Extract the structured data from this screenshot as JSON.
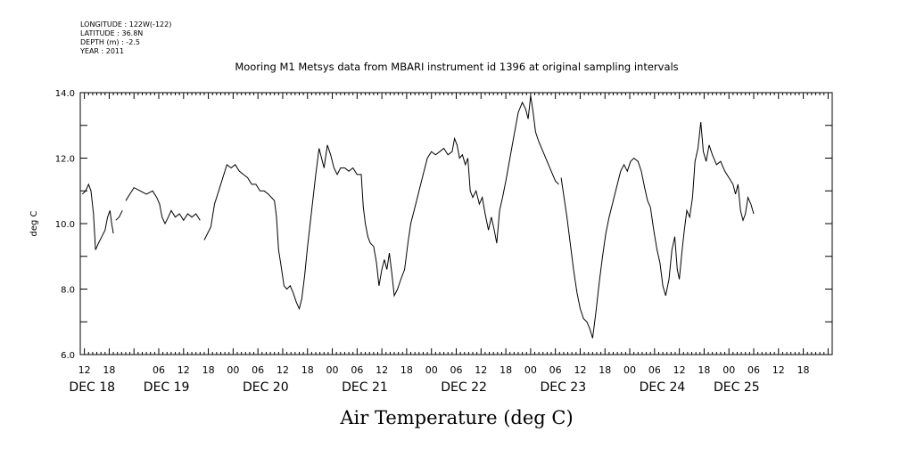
{
  "header": {
    "longitude": "LONGITUDE : 122W(-122)",
    "latitude": "LATITUDE : 36.8N",
    "depth": "DEPTH (m) : -2.5",
    "year": "YEAR : 2011"
  },
  "chart_data": {
    "type": "line",
    "title": "Mooring M1 Metsys data from MBARI instrument id 1396 at original sampling intervals",
    "ylabel": "deg C",
    "bottom_label": "Air Temperature (deg C)",
    "ylim": [
      6.0,
      14.0
    ],
    "yticks": [
      "6.0",
      "8.0",
      "10.0",
      "12.0",
      "14.0"
    ],
    "xlim_hours": [
      -1,
      181
    ],
    "xticks": [
      {
        "hour": 0,
        "label": "12"
      },
      {
        "hour": 6,
        "label": "18"
      },
      {
        "hour": 18,
        "label": "06"
      },
      {
        "hour": 24,
        "label": "12"
      },
      {
        "hour": 30,
        "label": "18"
      },
      {
        "hour": 36,
        "label": "00"
      },
      {
        "hour": 42,
        "label": "06"
      },
      {
        "hour": 48,
        "label": "12"
      },
      {
        "hour": 54,
        "label": "18"
      },
      {
        "hour": 60,
        "label": "00"
      },
      {
        "hour": 66,
        "label": "06"
      },
      {
        "hour": 72,
        "label": "12"
      },
      {
        "hour": 78,
        "label": "18"
      },
      {
        "hour": 84,
        "label": "00"
      },
      {
        "hour": 90,
        "label": "06"
      },
      {
        "hour": 96,
        "label": "12"
      },
      {
        "hour": 102,
        "label": "18"
      },
      {
        "hour": 108,
        "label": "00"
      },
      {
        "hour": 114,
        "label": "06"
      },
      {
        "hour": 120,
        "label": "12"
      },
      {
        "hour": 126,
        "label": "18"
      },
      {
        "hour": 132,
        "label": "00"
      },
      {
        "hour": 138,
        "label": "06"
      },
      {
        "hour": 144,
        "label": "12"
      },
      {
        "hour": 150,
        "label": "18"
      },
      {
        "hour": 156,
        "label": "00"
      },
      {
        "hour": 162,
        "label": "06"
      },
      {
        "hour": 168,
        "label": "12"
      },
      {
        "hour": 174,
        "label": "18"
      }
    ],
    "day_labels": [
      {
        "hour": 1,
        "label": "DEC 18"
      },
      {
        "hour": 19,
        "label": "DEC 19"
      },
      {
        "hour": 43,
        "label": "DEC 20"
      },
      {
        "hour": 67,
        "label": "DEC 21"
      },
      {
        "hour": 91,
        "label": "DEC 22"
      },
      {
        "hour": 115,
        "label": "DEC 23"
      },
      {
        "hour": 139,
        "label": "DEC 24"
      },
      {
        "hour": 157,
        "label": "DEC 25"
      }
    ],
    "segments": [
      [
        [
          -0.5,
          10.9
        ],
        [
          0.3,
          11.0
        ],
        [
          1.0,
          11.2
        ],
        [
          1.6,
          11.0
        ],
        [
          2.2,
          10.3
        ],
        [
          2.7,
          9.2
        ],
        [
          3.4,
          9.4
        ],
        [
          4.2,
          9.6
        ],
        [
          5.0,
          9.8
        ],
        [
          5.6,
          10.2
        ],
        [
          6.2,
          10.4
        ],
        [
          6.6,
          10.0
        ],
        [
          7.0,
          9.7
        ]
      ],
      [
        [
          7.6,
          10.1
        ],
        [
          8.4,
          10.2
        ],
        [
          9.2,
          10.4
        ]
      ],
      [
        [
          10.0,
          10.7
        ],
        [
          11.0,
          10.9
        ],
        [
          12.0,
          11.1
        ],
        [
          13.5,
          11.0
        ],
        [
          15.0,
          10.9
        ],
        [
          16.5,
          11.0
        ],
        [
          17.5,
          10.8
        ],
        [
          18.2,
          10.6
        ],
        [
          18.8,
          10.2
        ],
        [
          19.5,
          10.0
        ],
        [
          20.3,
          10.2
        ],
        [
          21.0,
          10.4
        ],
        [
          22.0,
          10.2
        ],
        [
          23.0,
          10.3
        ],
        [
          24.0,
          10.1
        ],
        [
          25.0,
          10.3
        ],
        [
          26.0,
          10.2
        ],
        [
          27.0,
          10.3
        ],
        [
          28.0,
          10.1
        ]
      ],
      [
        [
          29.0,
          9.5
        ],
        [
          29.8,
          9.7
        ],
        [
          30.6,
          9.9
        ],
        [
          31.5,
          10.6
        ],
        [
          32.5,
          11.0
        ],
        [
          33.5,
          11.4
        ],
        [
          34.5,
          11.8
        ],
        [
          35.5,
          11.7
        ],
        [
          36.5,
          11.8
        ],
        [
          37.5,
          11.6
        ],
        [
          38.5,
          11.5
        ],
        [
          39.5,
          11.4
        ],
        [
          40.5,
          11.2
        ],
        [
          41.5,
          11.2
        ],
        [
          42.5,
          11.0
        ],
        [
          43.5,
          11.0
        ],
        [
          44.5,
          10.9
        ],
        [
          46.0,
          10.7
        ],
        [
          46.5,
          10.2
        ],
        [
          47.0,
          9.2
        ],
        [
          47.5,
          8.8
        ],
        [
          48.3,
          8.1
        ],
        [
          49.0,
          8.0
        ],
        [
          49.8,
          8.1
        ],
        [
          50.5,
          7.9
        ],
        [
          51.3,
          7.6
        ],
        [
          52.0,
          7.4
        ],
        [
          52.6,
          7.7
        ],
        [
          53.3,
          8.4
        ],
        [
          54.0,
          9.3
        ],
        [
          55.0,
          10.4
        ],
        [
          56.0,
          11.5
        ],
        [
          56.8,
          12.3
        ],
        [
          57.4,
          12.0
        ],
        [
          58.0,
          11.7
        ],
        [
          58.8,
          12.4
        ],
        [
          59.6,
          12.1
        ],
        [
          60.4,
          11.7
        ],
        [
          61.2,
          11.5
        ],
        [
          62.0,
          11.7
        ],
        [
          63.0,
          11.7
        ],
        [
          64.0,
          11.6
        ],
        [
          65.0,
          11.7
        ],
        [
          66.0,
          11.5
        ],
        [
          67.0,
          11.5
        ],
        [
          67.5,
          10.5
        ],
        [
          68.0,
          10.0
        ],
        [
          68.6,
          9.6
        ],
        [
          69.2,
          9.4
        ],
        [
          70.0,
          9.3
        ],
        [
          70.7,
          8.8
        ],
        [
          71.3,
          8.1
        ],
        [
          72.0,
          8.6
        ],
        [
          72.6,
          8.9
        ],
        [
          73.2,
          8.6
        ],
        [
          73.8,
          9.1
        ],
        [
          74.4,
          8.5
        ],
        [
          75.0,
          7.8
        ],
        [
          75.8,
          8.0
        ],
        [
          76.6,
          8.3
        ],
        [
          77.5,
          8.6
        ],
        [
          78.3,
          9.4
        ],
        [
          79.0,
          10.0
        ],
        [
          80.0,
          10.5
        ],
        [
          81.0,
          11.0
        ],
        [
          82.0,
          11.5
        ],
        [
          83.0,
          12.0
        ],
        [
          84.0,
          12.2
        ],
        [
          85.0,
          12.1
        ],
        [
          86.0,
          12.2
        ],
        [
          87.0,
          12.3
        ],
        [
          88.0,
          12.1
        ],
        [
          89.0,
          12.2
        ],
        [
          89.6,
          12.6
        ],
        [
          90.2,
          12.4
        ],
        [
          90.8,
          12.0
        ],
        [
          91.5,
          12.1
        ],
        [
          92.2,
          11.8
        ],
        [
          92.8,
          12.0
        ],
        [
          93.4,
          11.0
        ],
        [
          94.0,
          10.8
        ],
        [
          94.8,
          11.0
        ],
        [
          95.6,
          10.6
        ],
        [
          96.3,
          10.8
        ],
        [
          97.0,
          10.3
        ],
        [
          97.8,
          9.8
        ],
        [
          98.5,
          10.2
        ],
        [
          99.2,
          9.8
        ],
        [
          99.8,
          9.4
        ],
        [
          100.5,
          10.4
        ],
        [
          101.2,
          10.8
        ],
        [
          102.0,
          11.3
        ],
        [
          103.0,
          12.0
        ],
        [
          104.0,
          12.7
        ],
        [
          105.0,
          13.4
        ],
        [
          106.0,
          13.7
        ],
        [
          106.8,
          13.5
        ],
        [
          107.4,
          13.2
        ],
        [
          108.0,
          13.9
        ],
        [
          108.6,
          13.4
        ],
        [
          109.2,
          12.8
        ],
        [
          110.0,
          12.5
        ],
        [
          111.0,
          12.2
        ],
        [
          112.0,
          11.9
        ],
        [
          113.0,
          11.6
        ],
        [
          114.0,
          11.3
        ],
        [
          114.8,
          11.2
        ]
      ],
      [
        [
          115.4,
          11.4
        ],
        [
          116.2,
          10.7
        ],
        [
          116.8,
          10.2
        ],
        [
          117.6,
          9.4
        ],
        [
          118.4,
          8.6
        ],
        [
          119.2,
          7.9
        ],
        [
          120.0,
          7.4
        ],
        [
          120.8,
          7.1
        ],
        [
          121.6,
          7.0
        ],
        [
          122.3,
          6.8
        ],
        [
          123.0,
          6.5
        ],
        [
          123.8,
          7.3
        ],
        [
          124.6,
          8.2
        ],
        [
          125.4,
          9.0
        ],
        [
          126.2,
          9.7
        ],
        [
          127.0,
          10.2
        ],
        [
          128.0,
          10.7
        ],
        [
          129.0,
          11.2
        ],
        [
          129.8,
          11.6
        ],
        [
          130.6,
          11.8
        ],
        [
          131.4,
          11.6
        ],
        [
          132.2,
          11.9
        ],
        [
          133.0,
          12.0
        ],
        [
          134.0,
          11.9
        ],
        [
          134.8,
          11.6
        ],
        [
          135.6,
          11.1
        ],
        [
          136.3,
          10.7
        ],
        [
          137.0,
          10.5
        ],
        [
          137.8,
          9.8
        ],
        [
          138.6,
          9.2
        ],
        [
          139.3,
          8.8
        ],
        [
          140.0,
          8.1
        ],
        [
          140.7,
          7.8
        ],
        [
          141.5,
          8.3
        ],
        [
          142.2,
          9.2
        ],
        [
          142.9,
          9.6
        ],
        [
          143.5,
          8.6
        ],
        [
          144.0,
          8.3
        ],
        [
          144.6,
          9.1
        ],
        [
          145.2,
          9.8
        ],
        [
          145.8,
          10.4
        ],
        [
          146.5,
          10.2
        ],
        [
          147.2,
          10.8
        ],
        [
          147.8,
          11.9
        ],
        [
          148.5,
          12.3
        ],
        [
          149.2,
          13.1
        ],
        [
          149.8,
          12.2
        ],
        [
          150.5,
          11.9
        ],
        [
          151.2,
          12.4
        ],
        [
          152.0,
          12.1
        ],
        [
          153.0,
          11.8
        ],
        [
          154.0,
          11.9
        ],
        [
          155.0,
          11.6
        ],
        [
          156.0,
          11.4
        ],
        [
          157.0,
          11.2
        ],
        [
          157.6,
          10.9
        ],
        [
          158.2,
          11.2
        ],
        [
          158.8,
          10.4
        ],
        [
          159.4,
          10.1
        ],
        [
          160.0,
          10.3
        ],
        [
          160.6,
          10.8
        ],
        [
          161.3,
          10.6
        ],
        [
          162.0,
          10.3
        ]
      ]
    ]
  }
}
